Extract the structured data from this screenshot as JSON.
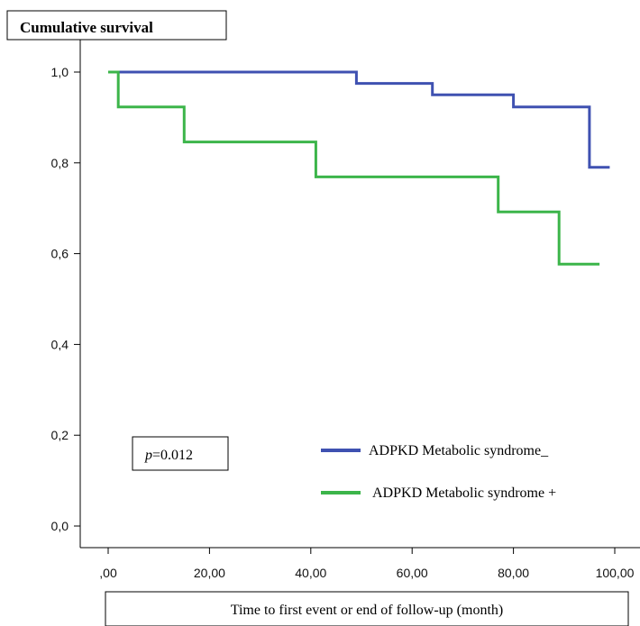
{
  "chart_data": {
    "type": "line",
    "title": "Cumulative survival",
    "xlabel": "Time to first event or end of follow-up (month)",
    "ylabel": "",
    "xlim": [
      0,
      100
    ],
    "ylim": [
      0,
      1
    ],
    "x_ticks": [
      0,
      20,
      40,
      60,
      80,
      100
    ],
    "x_tick_labels": [
      ",00",
      "20,00",
      "40,00",
      "60,00",
      "80,00",
      "100,00"
    ],
    "y_ticks": [
      0,
      0.2,
      0.4,
      0.6,
      0.8,
      1.0
    ],
    "y_tick_labels": [
      "0,0",
      "0,2",
      "0,4",
      "0,6",
      "0,8",
      "1,0"
    ],
    "grid": false,
    "legend_position": "bottom-right",
    "annotation": {
      "prefix": "p",
      "value": "=0.012"
    },
    "series": [
      {
        "name": "ADPKD Metabolic syndrome_",
        "color": "#3f51b1",
        "step": true,
        "points": [
          [
            0,
            1.0
          ],
          [
            49,
            1.0
          ],
          [
            49,
            0.975
          ],
          [
            64,
            0.975
          ],
          [
            64,
            0.95
          ],
          [
            80,
            0.95
          ],
          [
            80,
            0.923
          ],
          [
            95,
            0.923
          ],
          [
            95,
            0.79
          ],
          [
            99,
            0.79
          ]
        ]
      },
      {
        "name": "ADPKD Metabolic syndrome +",
        "color": "#3cb54a",
        "step": true,
        "points": [
          [
            0,
            1.0
          ],
          [
            2,
            1.0
          ],
          [
            2,
            0.923
          ],
          [
            15,
            0.923
          ],
          [
            15,
            0.846
          ],
          [
            41,
            0.846
          ],
          [
            41,
            0.769
          ],
          [
            77,
            0.769
          ],
          [
            77,
            0.692
          ],
          [
            89,
            0.692
          ],
          [
            89,
            0.577
          ],
          [
            97,
            0.577
          ]
        ]
      }
    ]
  }
}
